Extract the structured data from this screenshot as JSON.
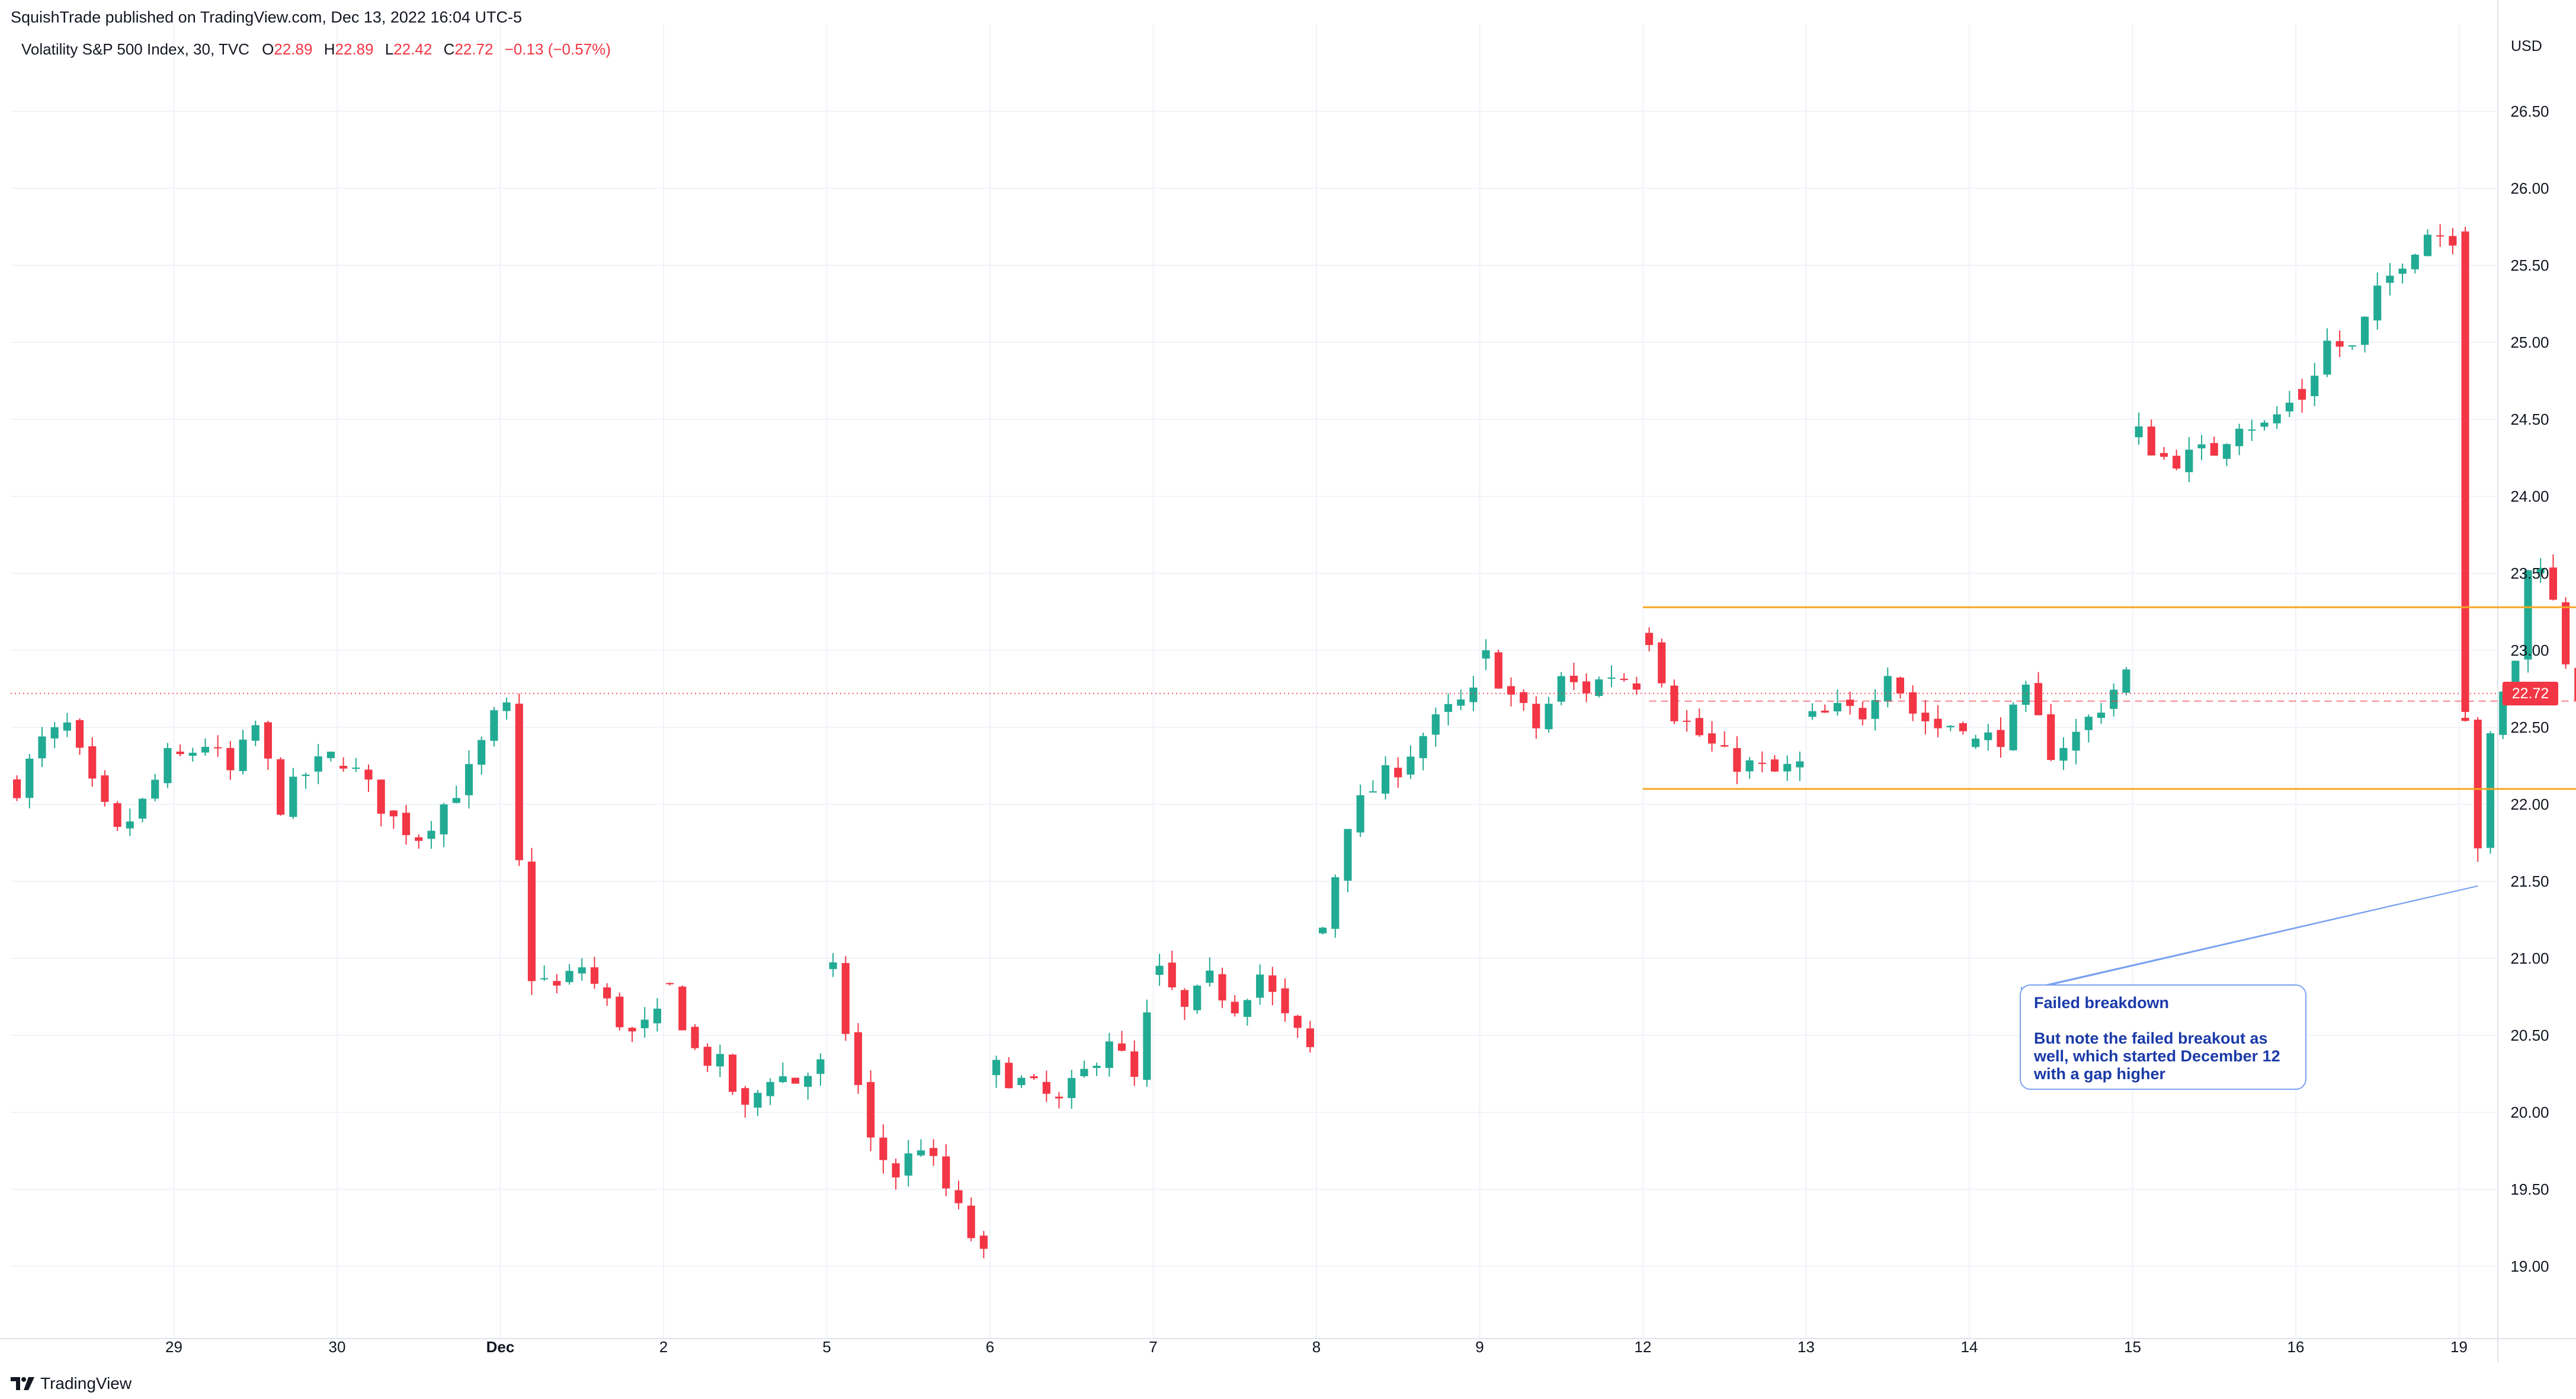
{
  "header": {
    "publisher": "SquishTrade published on TradingView.com, Dec 13, 2022 16:04 UTC-5",
    "symbol": "Volatility S&P 500 Index, 30, TVC",
    "open_label": "O",
    "open": "22.89",
    "high_label": "H",
    "high": "22.89",
    "low_label": "L",
    "low": "22.42",
    "close_label": "C",
    "close": "22.72",
    "change": "−0.13 (−0.57%)"
  },
  "axis": {
    "currency": "USD",
    "current_price": "22.72"
  },
  "annotation": {
    "title": "Failed breakdown",
    "body": "But note the failed breakout as well, which started December 12 with a gap higher"
  },
  "brand": {
    "name": "TradingView"
  },
  "colors": {
    "up": "#22ab94",
    "down": "#f23645",
    "range_lines": "#f5a623",
    "annotation": "#1a3aa8",
    "annotation_border": "#7aa2f0"
  },
  "chart_data": {
    "type": "candlestick",
    "ylim": [
      18.7,
      27.1
    ],
    "y_ticks": [
      "19.00",
      "19.50",
      "20.00",
      "20.50",
      "21.00",
      "21.50",
      "22.00",
      "22.50",
      "23.00",
      "23.50",
      "24.00",
      "24.50",
      "25.00",
      "25.50",
      "26.00",
      "26.50"
    ],
    "x_ticks": [
      "29",
      "30",
      "Dec",
      "2",
      "5",
      "6",
      "7",
      "8",
      "9",
      "12",
      "13",
      "14",
      "15",
      "16",
      "19"
    ],
    "bars_per_day": 13,
    "range_box": {
      "top": 23.28,
      "bottom": 22.1
    },
    "annotation_anchor_price": 21.47,
    "segments": [
      {
        "session": 0,
        "anchors": [
          [
            0,
            22.12
          ],
          [
            2,
            22.4
          ],
          [
            4,
            22.5
          ],
          [
            6,
            22.1
          ],
          [
            8,
            21.8
          ],
          [
            10,
            22.0
          ],
          [
            12,
            22.3
          ]
        ]
      },
      {
        "session": 1,
        "anchors": [
          [
            0,
            22.3
          ],
          [
            2,
            22.4
          ],
          [
            4,
            22.2
          ],
          [
            6,
            22.5
          ],
          [
            8,
            22.0
          ],
          [
            10,
            22.2
          ],
          [
            12,
            22.3
          ]
        ]
      },
      {
        "session": 2,
        "anchors": [
          [
            0,
            22.3
          ],
          [
            2,
            22.1
          ],
          [
            4,
            21.9
          ],
          [
            6,
            21.8
          ],
          [
            8,
            22.0
          ],
          [
            10,
            22.2
          ],
          [
            12,
            22.55
          ]
        ]
      },
      {
        "session": 3,
        "anchors": [
          [
            0,
            22.6
          ],
          [
            1,
            21.6
          ],
          [
            2,
            20.9
          ],
          [
            4,
            20.8
          ],
          [
            6,
            20.95
          ],
          [
            8,
            20.7
          ],
          [
            10,
            20.5
          ],
          [
            12,
            20.6
          ]
        ]
      },
      {
        "session": 4,
        "anchors": [
          [
            0,
            20.8
          ],
          [
            2,
            20.4
          ],
          [
            4,
            20.3
          ],
          [
            6,
            20.0
          ],
          [
            8,
            20.25
          ],
          [
            10,
            20.2
          ],
          [
            12,
            20.3
          ]
        ]
      },
      {
        "session": 5,
        "anchors": [
          [
            0,
            20.9
          ],
          [
            3,
            19.8
          ],
          [
            5,
            19.6
          ],
          [
            7,
            19.8
          ],
          [
            9,
            19.5
          ],
          [
            11,
            19.2
          ],
          [
            12,
            19.05
          ]
        ]
      },
      {
        "session": 6,
        "anchors": [
          [
            0,
            20.28
          ],
          [
            3,
            20.15
          ],
          [
            5,
            20.05
          ],
          [
            7,
            20.25
          ],
          [
            9,
            20.5
          ],
          [
            11,
            20.2
          ],
          [
            12,
            20.6
          ]
        ]
      },
      {
        "session": 7,
        "anchors": [
          [
            0,
            20.9
          ],
          [
            2,
            20.65
          ],
          [
            4,
            20.85
          ],
          [
            6,
            20.7
          ],
          [
            8,
            20.9
          ],
          [
            10,
            20.6
          ],
          [
            12,
            20.4
          ]
        ]
      },
      {
        "session": 8,
        "anchors": [
          [
            0,
            21.2
          ],
          [
            2,
            21.9
          ],
          [
            4,
            22.1
          ],
          [
            6,
            22.25
          ],
          [
            8,
            22.45
          ],
          [
            10,
            22.6
          ],
          [
            12,
            22.7
          ]
        ]
      },
      {
        "session": 9,
        "anchors": [
          [
            0,
            22.95
          ],
          [
            2,
            22.7
          ],
          [
            4,
            22.5
          ],
          [
            6,
            22.8
          ],
          [
            8,
            22.75
          ],
          [
            10,
            22.85
          ],
          [
            12,
            22.8
          ]
        ]
      },
      {
        "session": 10,
        "anchors": [
          [
            0,
            23.1
          ],
          [
            2,
            22.6
          ],
          [
            4,
            22.45
          ],
          [
            6,
            22.3
          ],
          [
            8,
            22.25
          ],
          [
            10,
            22.2
          ],
          [
            12,
            22.25
          ]
        ]
      },
      {
        "session": 11,
        "anchors": [
          [
            0,
            22.55
          ],
          [
            2,
            22.6
          ],
          [
            4,
            22.6
          ],
          [
            6,
            22.9
          ],
          [
            8,
            22.6
          ],
          [
            10,
            22.5
          ],
          [
            12,
            22.55
          ]
        ]
      },
      {
        "session": 12,
        "anchors": [
          [
            0,
            22.4
          ],
          [
            2,
            22.45
          ],
          [
            4,
            22.7
          ],
          [
            6,
            22.35
          ],
          [
            8,
            22.45
          ],
          [
            10,
            22.65
          ],
          [
            12,
            22.85
          ]
        ]
      },
      {
        "session": 13,
        "anchors": [
          [
            0,
            24.4
          ],
          [
            2,
            24.25
          ],
          [
            4,
            24.25
          ],
          [
            6,
            24.3
          ],
          [
            8,
            24.5
          ],
          [
            10,
            24.45
          ],
          [
            12,
            24.6
          ]
        ]
      },
      {
        "session": 14,
        "anchors": [
          [
            0,
            24.65
          ],
          [
            2,
            25.0
          ],
          [
            4,
            24.95
          ],
          [
            6,
            25.3
          ],
          [
            8,
            25.55
          ],
          [
            10,
            25.72
          ],
          [
            12,
            25.7
          ]
        ]
      },
      {
        "session": 15,
        "anchors": [
          [
            0,
            22.6
          ],
          [
            1,
            21.75
          ],
          [
            2,
            22.4
          ],
          [
            3,
            22.7
          ],
          [
            4,
            22.95
          ],
          [
            5,
            23.5
          ],
          [
            6,
            23.6
          ],
          [
            7,
            23.3
          ],
          [
            8,
            22.95
          ],
          [
            9,
            22.72
          ]
        ]
      }
    ]
  }
}
